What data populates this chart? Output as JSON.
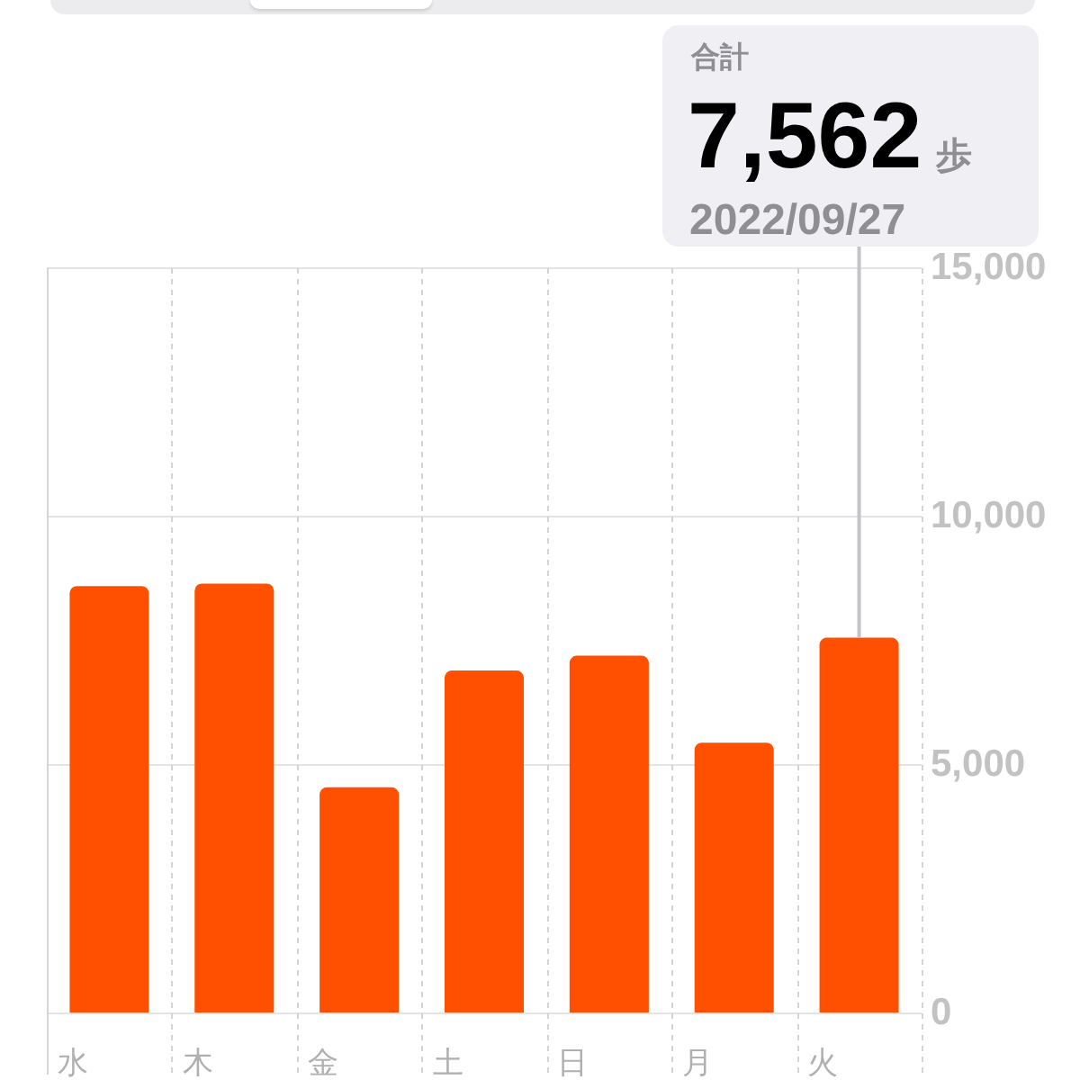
{
  "chart_data": {
    "type": "bar",
    "categories": [
      "水",
      "木",
      "金",
      "土",
      "日",
      "月",
      "火"
    ],
    "values": [
      8600,
      8650,
      4550,
      6900,
      7200,
      5450,
      7562
    ],
    "color": "#ff4f00",
    "ylim": [
      0,
      15000
    ],
    "yticks": [
      0,
      {
        "value": 5000,
        "label": "5,000"
      },
      {
        "value": 10000,
        "label": "10,000"
      },
      {
        "value": 15000,
        "label": "15,000"
      }
    ],
    "grid": true,
    "value_labels": [
      null,
      null,
      null,
      null,
      null,
      null,
      "7,562"
    ],
    "annotations": [
      "合計",
      "歩",
      "2022/09/27"
    ]
  }
}
